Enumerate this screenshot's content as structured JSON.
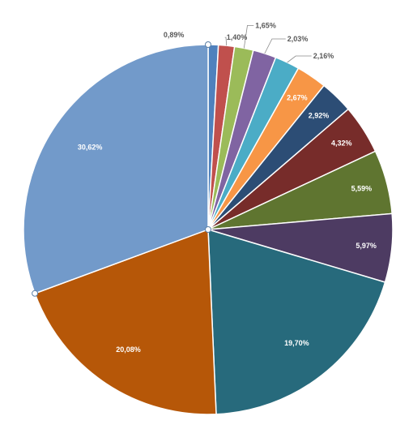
{
  "chart_data": {
    "type": "pie",
    "title": "",
    "start_angle_deg": 0,
    "direction": "clockwise",
    "slices": [
      {
        "label": "0,89%",
        "value": 0.89,
        "color": "#4F81BD"
      },
      {
        "label": "1,40%",
        "value": 1.4,
        "color": "#C0504D"
      },
      {
        "label": "1,65%",
        "value": 1.65,
        "color": "#9BBB59"
      },
      {
        "label": "2,03%",
        "value": 2.03,
        "color": "#8064A2"
      },
      {
        "label": "2,16%",
        "value": 2.16,
        "color": "#4BACC6"
      },
      {
        "label": "2,67%",
        "value": 2.67,
        "color": "#F79646"
      },
      {
        "label": "2,92%",
        "value": 2.92,
        "color": "#2C4D75"
      },
      {
        "label": "4,32%",
        "value": 4.32,
        "color": "#772C2A"
      },
      {
        "label": "5,59%",
        "value": 5.59,
        "color": "#5F7530"
      },
      {
        "label": "5,97%",
        "value": 5.97,
        "color": "#4D3B62"
      },
      {
        "label": "19,70%",
        "value": 19.7,
        "color": "#276A7C"
      },
      {
        "label": "20,08%",
        "value": 20.08,
        "color": "#B65708"
      },
      {
        "label": "30,62%",
        "value": 30.62,
        "color": "#729ACA"
      }
    ],
    "legend": "none"
  }
}
